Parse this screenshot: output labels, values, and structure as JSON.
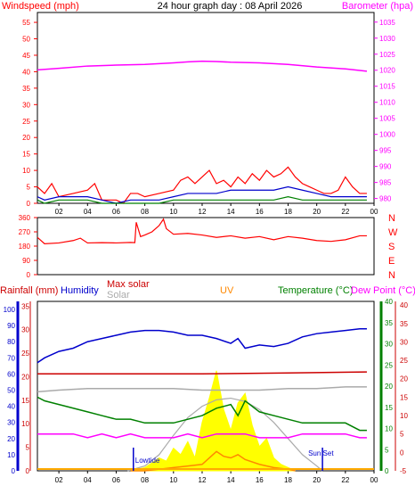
{
  "header": {
    "windspeed_label": "Windspeed (mph)",
    "title": "24 hour graph day : 08 April 2026",
    "barometer_label": "Barometer (hpa)"
  },
  "colors": {
    "wind": "#ff0000",
    "wind_avg": "#0000cc",
    "wind_low": "#008000",
    "barometer": "#ff00ff",
    "direction": "#ff0000",
    "humidity": "#0000cc",
    "rain": "#cc0000",
    "solar": "#aaaaaa",
    "max_solar": "#cc0000",
    "uv": "#ff8800",
    "temperature": "#008000",
    "dew_point": "#ff00ff",
    "solar_fill": "#ffff00",
    "axis_green": "#008000"
  },
  "chart_data": [
    {
      "type": "line",
      "title": "24 hour graph day : 08 April 2026",
      "ylabel_left": "Windspeed (mph)",
      "ylabel_right": "Barometer (hpa)",
      "x_ticks": [
        "02",
        "04",
        "06",
        "08",
        "10",
        "12",
        "14",
        "16",
        "18",
        "20",
        "22",
        "00"
      ],
      "x_range": [
        0.5,
        24
      ],
      "y_left_ticks": [
        0,
        5,
        10,
        15,
        20,
        25,
        30,
        35,
        40,
        45,
        50,
        55
      ],
      "y_left_range": [
        0,
        58
      ],
      "y_right_ticks": [
        980,
        985,
        990,
        995,
        1000,
        1005,
        1010,
        1015,
        1020,
        1025,
        1030,
        1035
      ],
      "y_right_range": [
        978.5,
        1038
      ],
      "series": [
        {
          "name": "Barometer",
          "axis": "right",
          "x": [
            0.5,
            2,
            4,
            6,
            8,
            10,
            11,
            12,
            13,
            14,
            16,
            18,
            20,
            22,
            23.5
          ],
          "values": [
            1020.1,
            1020.6,
            1021.3,
            1021.6,
            1021.8,
            1022.3,
            1022.6,
            1022.8,
            1022.7,
            1022.5,
            1022.3,
            1021.8,
            1021.0,
            1020.4,
            1019.7
          ]
        },
        {
          "name": "Wind gust",
          "axis": "left",
          "x": [
            0.5,
            1,
            1.5,
            2,
            3,
            4,
            4.5,
            5,
            6,
            6.5,
            7,
            7.5,
            8,
            9,
            10,
            10.5,
            11,
            11.5,
            12,
            12.5,
            13,
            13.5,
            14,
            14.5,
            15,
            15.5,
            16,
            16.5,
            17,
            17.5,
            18,
            18.5,
            19,
            19.5,
            20,
            20.5,
            21,
            21.5,
            22,
            22.5,
            23,
            23.5
          ],
          "values": [
            5,
            3,
            6,
            2,
            3,
            4,
            6,
            1,
            1,
            0,
            3,
            3,
            2,
            3,
            4,
            7,
            8,
            6,
            8,
            10,
            6,
            7,
            5,
            8,
            6,
            9,
            7,
            10,
            8,
            9,
            11,
            8,
            6,
            5,
            4,
            3,
            3,
            4,
            8,
            5,
            3,
            3
          ]
        },
        {
          "name": "Wind average",
          "axis": "left",
          "x": [
            0.5,
            1,
            2,
            3,
            4,
            5,
            6,
            7,
            8,
            9,
            10,
            11,
            12,
            13,
            14,
            15,
            16,
            17,
            18,
            19,
            20,
            21,
            22,
            23,
            23.5
          ],
          "values": [
            2,
            1,
            2,
            2,
            2,
            1,
            0,
            1,
            1,
            1,
            2,
            3,
            3,
            3,
            4,
            4,
            4,
            4,
            5,
            4,
            3,
            2,
            2,
            2,
            2
          ]
        },
        {
          "name": "Wind low",
          "axis": "left",
          "x": [
            0.5,
            1,
            2,
            3,
            4,
            5,
            6,
            7,
            8,
            9,
            10,
            11,
            12,
            13,
            14,
            15,
            16,
            17,
            18,
            19,
            20,
            21,
            22,
            23,
            23.5
          ],
          "values": [
            1,
            0,
            1,
            1,
            1,
            0,
            0,
            0,
            0,
            0,
            1,
            1,
            1,
            1,
            1,
            1,
            1,
            1,
            2,
            1,
            1,
            1,
            1,
            1,
            1
          ]
        }
      ]
    },
    {
      "type": "line",
      "y_ticks": [
        0,
        90,
        180,
        270,
        360
      ],
      "y_range": [
        0,
        360
      ],
      "compass_labels": [
        "N",
        "W",
        "S",
        "E",
        "N"
      ],
      "series": [
        {
          "name": "Wind direction",
          "x": [
            0.5,
            1,
            2,
            3,
            3.5,
            4,
            5,
            6,
            7,
            7.3,
            7.4,
            7.7,
            8,
            8.5,
            9,
            9.3,
            9.5,
            10,
            11,
            12,
            13,
            14,
            15,
            16,
            17,
            18,
            19,
            20,
            21,
            22,
            23,
            23.5
          ],
          "values": [
            235,
            195,
            200,
            215,
            230,
            200,
            202,
            200,
            203,
            202,
            330,
            240,
            250,
            270,
            310,
            350,
            290,
            255,
            260,
            250,
            235,
            245,
            230,
            240,
            220,
            240,
            230,
            215,
            210,
            220,
            245,
            245
          ]
        }
      ]
    },
    {
      "type": "line",
      "legend": [
        "Rainfall (mm)",
        "Humidity",
        "Max solar",
        "Solar",
        "UV",
        "Temperature (°C)",
        "Dew Point (°C)"
      ],
      "x_ticks": [
        "02",
        "04",
        "06",
        "08",
        "10",
        "12",
        "14",
        "16",
        "18",
        "20",
        "22",
        "00"
      ],
      "humidity_ticks": [
        0,
        10,
        20,
        30,
        40,
        50,
        60,
        70,
        80,
        90,
        100
      ],
      "humidity_range": [
        0,
        105
      ],
      "rain_ticks": [
        0,
        5,
        10,
        15,
        20,
        25,
        30,
        35
      ],
      "rain_range": [
        0,
        36
      ],
      "uv_ticks": [
        0,
        5,
        10,
        15,
        20,
        25,
        30,
        35,
        40
      ],
      "temperature_ticks": [
        -5,
        0,
        5,
        10,
        15,
        20,
        25,
        30,
        35,
        40
      ],
      "temperature_range": [
        -5,
        41
      ],
      "series": [
        {
          "name": "Humidity",
          "x": [
            0.5,
            1,
            2,
            3,
            4,
            5,
            6,
            7,
            8,
            9,
            10,
            11,
            12,
            13,
            14,
            14.5,
            15,
            16,
            17,
            18,
            19,
            20,
            21,
            22,
            23,
            23.5
          ],
          "values": [
            67,
            70,
            74,
            76,
            80,
            82,
            84,
            86,
            87,
            87,
            86,
            84,
            84,
            82,
            79,
            82,
            76,
            78,
            77,
            79,
            83,
            85,
            86,
            87,
            88,
            88
          ]
        },
        {
          "name": "Rainfall (mm)",
          "x": [
            0.5,
            6,
            12,
            18,
            23.5
          ],
          "values": [
            20.6,
            20.6,
            20.6,
            20.8,
            21.0
          ]
        },
        {
          "name": "Solar",
          "x": [
            0.5,
            2,
            4,
            6,
            8,
            10,
            12,
            14,
            16,
            18,
            20,
            22,
            23.5
          ],
          "values": [
            49,
            50,
            51,
            51,
            51,
            51,
            50,
            50,
            50,
            51,
            51,
            52,
            52
          ]
        },
        {
          "name": "Max solar",
          "x": [
            6.8,
            8,
            9,
            10,
            11,
            12,
            13,
            14,
            15,
            16,
            17,
            18,
            19,
            20,
            20.4
          ],
          "values": [
            0,
            3,
            10,
            22,
            33,
            40,
            44,
            45,
            43,
            38,
            30,
            20,
            10,
            3,
            0
          ]
        },
        {
          "name": "Solar radiation",
          "x": [
            7,
            8,
            9,
            9.5,
            10,
            10.5,
            11,
            11.5,
            12,
            12.5,
            13,
            13.5,
            14,
            14.5,
            15,
            15.5,
            16,
            16.5,
            17,
            17.5,
            18,
            18.5
          ],
          "values": [
            0,
            2,
            8,
            6,
            14,
            10,
            18,
            8,
            30,
            45,
            62,
            38,
            25,
            42,
            48,
            28,
            15,
            20,
            8,
            4,
            2,
            0
          ]
        },
        {
          "name": "UV",
          "x": [
            7,
            8,
            9,
            10,
            11,
            12,
            12.5,
            13,
            13.5,
            14,
            14.5,
            15,
            16,
            17,
            18,
            18.5
          ],
          "values": [
            0,
            0,
            1,
            2,
            3,
            4,
            8,
            12,
            9,
            8,
            10,
            7,
            4,
            2,
            1,
            0
          ]
        },
        {
          "name": "Temperature (°C)",
          "x": [
            0.5,
            1,
            2,
            3,
            4,
            5,
            6,
            7,
            8,
            9,
            10,
            11,
            12,
            13,
            14,
            14.5,
            15,
            16,
            17,
            18,
            19,
            20,
            21,
            22,
            23,
            23.5
          ],
          "values": [
            15,
            14,
            13,
            12,
            11,
            10,
            9,
            9,
            8,
            8,
            8,
            9,
            10,
            12,
            13,
            10,
            14,
            11,
            10,
            9,
            8,
            8,
            8,
            8,
            6,
            6
          ]
        },
        {
          "name": "Dew Point (°C)",
          "x": [
            0.5,
            1,
            2,
            3,
            4,
            5,
            6,
            7,
            8,
            9,
            10,
            11,
            12,
            13,
            14,
            15,
            16,
            17,
            18,
            19,
            20,
            21,
            22,
            23,
            23.5
          ],
          "values": [
            5,
            5,
            5,
            5,
            4,
            5,
            4,
            5,
            4,
            4,
            4,
            5,
            4,
            5,
            5,
            5,
            4,
            4,
            4,
            5,
            5,
            5,
            5,
            4,
            4
          ]
        }
      ],
      "annotations": [
        {
          "text": "Lowtide",
          "x": 7.2
        },
        {
          "text": "Sun Set",
          "x": 20.4
        }
      ]
    }
  ]
}
